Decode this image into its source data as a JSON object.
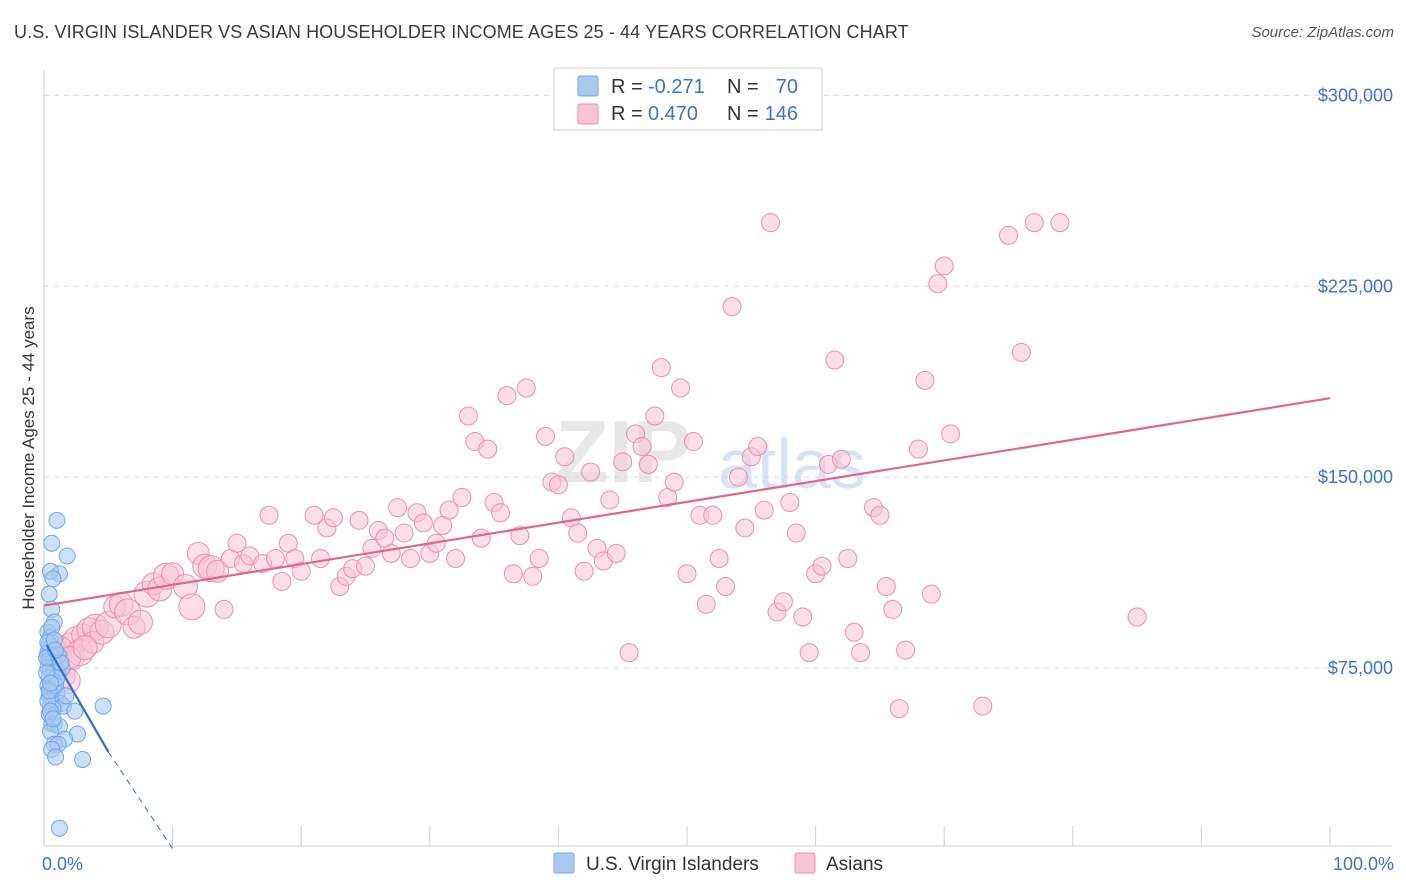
{
  "title": "U.S. VIRGIN ISLANDER VS ASIAN HOUSEHOLDER INCOME AGES 25 - 44 YEARS CORRELATION CHART",
  "source": "Source: ZipAtlas.com",
  "colors": {
    "blue": "#6fa8e8",
    "blue_fill": "#a9c9f1",
    "blue_line": "#2f6fd0",
    "pink": "#ee8fb0",
    "pink_fill": "#f7c3d5",
    "pink_line": "#e0668f",
    "label": "#3b74c4",
    "grid": "#dddddd"
  },
  "legend": {
    "r_label": "R =",
    "n_label": "N =",
    "rows": [
      {
        "r": "-0.271",
        "n": "70"
      },
      {
        "r": "0.470",
        "n": "146"
      }
    ]
  },
  "watermark": {
    "zip": "ZIP",
    "atlas": "atlas"
  },
  "chart_data": {
    "type": "scatter",
    "xlabel": "",
    "ylabel": "Householder Income Ages 25 - 44 years",
    "xlim": [
      0,
      100
    ],
    "ylim": [
      5000,
      310000
    ],
    "x_tick_labels": [
      "0.0%",
      "100.0%"
    ],
    "y_ticks": [
      75000,
      150000,
      225000,
      300000
    ],
    "y_tick_labels": [
      "$75,000",
      "$150,000",
      "$225,000",
      "$300,000"
    ],
    "series": [
      {
        "name": "U.S. Virgin Islanders",
        "r": -0.271,
        "n": 70,
        "trend": {
          "x0": 0.2,
          "y0": 84000,
          "x1": 5.0,
          "y1": 42000,
          "dash_to_x": 10.0,
          "dash_to_y": 4000
        },
        "points": [
          [
            1.0,
            133000
          ],
          [
            0.6,
            124000
          ],
          [
            1.8,
            119000
          ],
          [
            1.2,
            112000
          ],
          [
            0.5,
            113000
          ],
          [
            0.7,
            110000
          ],
          [
            0.4,
            104000
          ],
          [
            0.6,
            98000
          ],
          [
            0.8,
            93000
          ],
          [
            0.3,
            89000
          ],
          [
            0.5,
            87000
          ],
          [
            0.4,
            84000
          ],
          [
            0.6,
            83000
          ],
          [
            0.8,
            82000
          ],
          [
            0.3,
            81000
          ],
          [
            0.5,
            80000
          ],
          [
            0.7,
            79000
          ],
          [
            0.4,
            78000
          ],
          [
            0.6,
            77000
          ],
          [
            0.9,
            76000
          ],
          [
            0.3,
            75000
          ],
          [
            0.5,
            74000
          ],
          [
            0.7,
            73000
          ],
          [
            1.1,
            72000
          ],
          [
            0.4,
            71000
          ],
          [
            0.6,
            70000
          ],
          [
            0.8,
            69000
          ],
          [
            0.3,
            68000
          ],
          [
            0.5,
            67000
          ],
          [
            0.7,
            66000
          ],
          [
            1.0,
            65000
          ],
          [
            0.4,
            64000
          ],
          [
            0.6,
            63000
          ],
          [
            0.9,
            62000
          ],
          [
            1.3,
            61000
          ],
          [
            0.5,
            60000
          ],
          [
            1.5,
            60000
          ],
          [
            0.7,
            59000
          ],
          [
            2.4,
            58000
          ],
          [
            0.4,
            57000
          ],
          [
            0.6,
            53000
          ],
          [
            0.8,
            53000
          ],
          [
            1.2,
            52000
          ],
          [
            0.5,
            50000
          ],
          [
            2.6,
            49000
          ],
          [
            1.6,
            47000
          ],
          [
            0.8,
            45000
          ],
          [
            1.1,
            45000
          ],
          [
            0.6,
            43000
          ],
          [
            0.9,
            40000
          ],
          [
            3.0,
            39000
          ],
          [
            1.2,
            12000
          ],
          [
            4.6,
            60000
          ],
          [
            0.3,
            62000
          ],
          [
            0.5,
            58000
          ],
          [
            0.7,
            55000
          ],
          [
            0.9,
            68000
          ],
          [
            1.4,
            75000
          ],
          [
            0.2,
            79000
          ],
          [
            1.1,
            80000
          ],
          [
            0.3,
            85000
          ],
          [
            0.6,
            91000
          ],
          [
            1.0,
            71000
          ],
          [
            0.4,
            66000
          ],
          [
            1.7,
            64000
          ],
          [
            0.8,
            86000
          ],
          [
            0.2,
            73000
          ],
          [
            1.3,
            77000
          ],
          [
            0.5,
            69000
          ],
          [
            0.9,
            82000
          ]
        ]
      },
      {
        "name": "Asians",
        "r": 0.47,
        "n": 146,
        "trend": {
          "x0": 0.0,
          "y0": 99500,
          "x1": 100.0,
          "y1": 181000
        },
        "points": [
          [
            0.5,
            80000
          ],
          [
            0.8,
            78000
          ],
          [
            1.0,
            76000
          ],
          [
            1.2,
            74000
          ],
          [
            1.5,
            72000
          ],
          [
            1.8,
            70000
          ],
          [
            0.6,
            82000
          ],
          [
            2.0,
            84000
          ],
          [
            2.5,
            86000
          ],
          [
            3.0,
            88000
          ],
          [
            3.5,
            90000
          ],
          [
            4.0,
            91000
          ],
          [
            1.3,
            83000
          ],
          [
            2.2,
            79000
          ],
          [
            2.8,
            81000
          ],
          [
            3.8,
            85000
          ],
          [
            4.5,
            89000
          ],
          [
            5.0,
            92000
          ],
          [
            5.5,
            99000
          ],
          [
            6.0,
            100000
          ],
          [
            6.5,
            97000
          ],
          [
            7.0,
            91000
          ],
          [
            7.5,
            93000
          ],
          [
            8.0,
            104000
          ],
          [
            8.5,
            108000
          ],
          [
            9.0,
            106000
          ],
          [
            9.5,
            111000
          ],
          [
            10.0,
            112000
          ],
          [
            11.0,
            107000
          ],
          [
            11.5,
            99000
          ],
          [
            12.0,
            120000
          ],
          [
            12.5,
            115000
          ],
          [
            13.0,
            114000
          ],
          [
            13.5,
            113000
          ],
          [
            14.0,
            98000
          ],
          [
            14.5,
            118000
          ],
          [
            15.0,
            124000
          ],
          [
            15.5,
            116000
          ],
          [
            16.0,
            119000
          ],
          [
            17.0,
            116000
          ],
          [
            17.5,
            135000
          ],
          [
            18.0,
            118000
          ],
          [
            18.5,
            109000
          ],
          [
            19.0,
            124000
          ],
          [
            19.5,
            118000
          ],
          [
            20.0,
            113000
          ],
          [
            21.0,
            135000
          ],
          [
            21.5,
            118000
          ],
          [
            22.0,
            130000
          ],
          [
            22.5,
            134000
          ],
          [
            23.0,
            107000
          ],
          [
            23.5,
            111000
          ],
          [
            24.0,
            114000
          ],
          [
            24.5,
            133000
          ],
          [
            25.0,
            115000
          ],
          [
            25.5,
            122000
          ],
          [
            26.0,
            129000
          ],
          [
            26.5,
            126000
          ],
          [
            27.0,
            120000
          ],
          [
            27.5,
            138000
          ],
          [
            28.0,
            128000
          ],
          [
            28.5,
            118000
          ],
          [
            29.0,
            136000
          ],
          [
            29.5,
            132000
          ],
          [
            30.0,
            120000
          ],
          [
            30.5,
            124000
          ],
          [
            31.0,
            131000
          ],
          [
            31.5,
            137000
          ],
          [
            32.0,
            118000
          ],
          [
            32.5,
            142000
          ],
          [
            33.0,
            174000
          ],
          [
            33.5,
            164000
          ],
          [
            34.0,
            126000
          ],
          [
            34.5,
            161000
          ],
          [
            35.0,
            140000
          ],
          [
            35.5,
            136000
          ],
          [
            36.0,
            182000
          ],
          [
            36.5,
            112000
          ],
          [
            37.0,
            127000
          ],
          [
            37.5,
            185000
          ],
          [
            38.0,
            111000
          ],
          [
            38.5,
            118000
          ],
          [
            39.0,
            166000
          ],
          [
            39.5,
            148000
          ],
          [
            40.0,
            147000
          ],
          [
            40.5,
            158000
          ],
          [
            41.0,
            134000
          ],
          [
            41.5,
            128000
          ],
          [
            42.0,
            113000
          ],
          [
            42.5,
            152000
          ],
          [
            43.0,
            122000
          ],
          [
            43.5,
            117000
          ],
          [
            44.0,
            141000
          ],
          [
            44.5,
            120000
          ],
          [
            45.0,
            156000
          ],
          [
            45.5,
            81000
          ],
          [
            46.0,
            167000
          ],
          [
            46.5,
            162000
          ],
          [
            47.0,
            155000
          ],
          [
            47.5,
            174000
          ],
          [
            48.0,
            193000
          ],
          [
            48.5,
            142000
          ],
          [
            49.0,
            148000
          ],
          [
            49.5,
            185000
          ],
          [
            50.0,
            112000
          ],
          [
            50.5,
            164000
          ],
          [
            51.0,
            135000
          ],
          [
            51.5,
            100000
          ],
          [
            52.0,
            135000
          ],
          [
            52.5,
            118000
          ],
          [
            53.0,
            107000
          ],
          [
            53.5,
            217000
          ],
          [
            54.0,
            150000
          ],
          [
            54.5,
            130000
          ],
          [
            55.0,
            158000
          ],
          [
            55.5,
            162000
          ],
          [
            56.0,
            137000
          ],
          [
            56.5,
            250000
          ],
          [
            57.0,
            97000
          ],
          [
            57.5,
            101000
          ],
          [
            58.0,
            140000
          ],
          [
            58.5,
            128000
          ],
          [
            59.0,
            95000
          ],
          [
            59.5,
            81000
          ],
          [
            60.0,
            112000
          ],
          [
            60.5,
            115000
          ],
          [
            61.0,
            155000
          ],
          [
            61.5,
            196000
          ],
          [
            62.0,
            157000
          ],
          [
            62.5,
            118000
          ],
          [
            63.0,
            89000
          ],
          [
            63.5,
            81000
          ],
          [
            64.5,
            138000
          ],
          [
            65.0,
            135000
          ],
          [
            65.5,
            107000
          ],
          [
            66.0,
            98000
          ],
          [
            66.5,
            59000
          ],
          [
            67.0,
            82000
          ],
          [
            68.0,
            161000
          ],
          [
            68.5,
            188000
          ],
          [
            69.0,
            104000
          ],
          [
            69.5,
            226000
          ],
          [
            70.0,
            233000
          ],
          [
            70.5,
            167000
          ],
          [
            73.0,
            60000
          ],
          [
            75.0,
            245000
          ],
          [
            76.0,
            199000
          ],
          [
            77.0,
            250000
          ],
          [
            79.0,
            250000
          ],
          [
            85.0,
            95000
          ],
          [
            2.0,
            79000
          ],
          [
            3.2,
            83000
          ]
        ]
      }
    ]
  },
  "bottom_legend": [
    "U.S. Virgin Islanders",
    "Asians"
  ]
}
